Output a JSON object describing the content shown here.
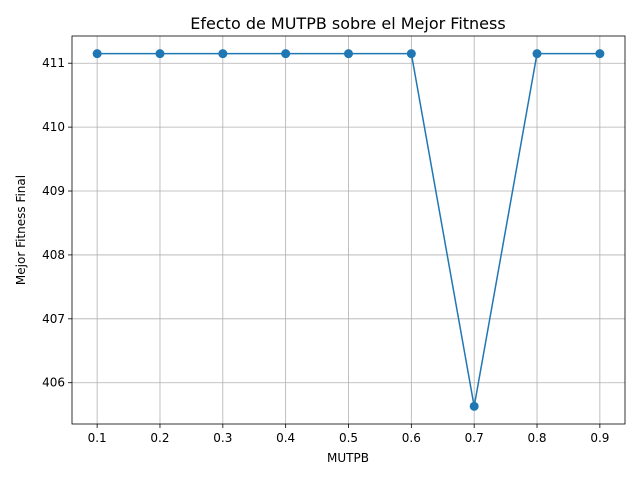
{
  "chart_data": {
    "type": "line",
    "title": "Efecto de MUTPB sobre el Mejor Fitness",
    "xlabel": "MUTPB",
    "ylabel": "Mejor Fitness Final",
    "x": [
      0.1,
      0.2,
      0.3,
      0.4,
      0.5,
      0.6,
      0.7,
      0.8,
      0.9
    ],
    "series": [
      {
        "values": [
          411.15,
          411.15,
          411.15,
          411.15,
          411.15,
          411.15,
          405.63,
          411.15,
          411.15
        ]
      }
    ],
    "xticks": [
      "0.1",
      "0.2",
      "0.3",
      "0.4",
      "0.5",
      "0.6",
      "0.7",
      "0.8",
      "0.9"
    ],
    "yticks": [
      "406",
      "407",
      "408",
      "409",
      "410",
      "411"
    ],
    "xlim": [
      0.06,
      0.94
    ],
    "ylim": [
      405.354,
      411.426
    ],
    "grid": true,
    "marker": "circle",
    "color": "#1f77b4"
  }
}
